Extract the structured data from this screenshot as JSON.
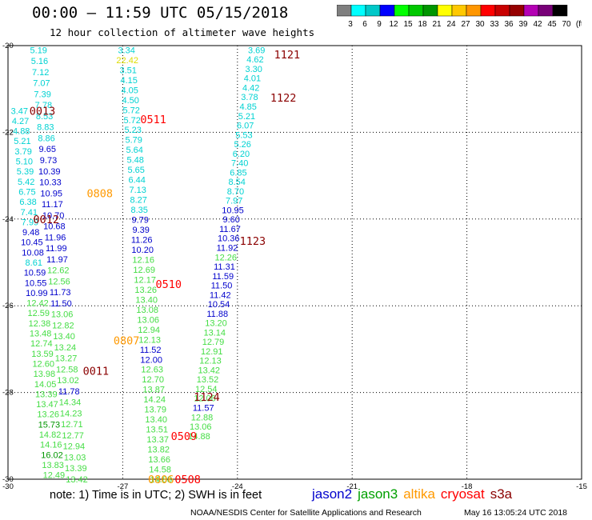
{
  "header": {
    "title": "00:00 – 11:59 UTC 05/15/2018",
    "subtitle": "12 hour collection of altimeter wave heights"
  },
  "colorbar": {
    "labels": [
      "3",
      "6",
      "9",
      "12",
      "15",
      "18",
      "21",
      "24",
      "27",
      "30",
      "33",
      "36",
      "39",
      "42",
      "45",
      "70",
      "(ft)"
    ],
    "colors": [
      "#7f7f7f",
      "#00ffff",
      "#00c8c8",
      "#0000ff",
      "#00ff00",
      "#00c800",
      "#009600",
      "#ffff00",
      "#ffc800",
      "#ff9600",
      "#ff0000",
      "#c80000",
      "#960000",
      "#b400b4",
      "#780078",
      "#000000"
    ]
  },
  "note": "note: 1) Time is in UTC; 2) SWH is in feet",
  "legend": [
    {
      "name": "jason2",
      "color": "#0000cc"
    },
    {
      "name": "jason3",
      "color": "#00a000"
    },
    {
      "name": "altika",
      "color": "#ff9900"
    },
    {
      "name": "cryosat",
      "color": "#ff0000"
    },
    {
      "name": "s3a",
      "color": "#8b0000"
    }
  ],
  "footer": {
    "credit": "NOAA/NESDIS Center for Satellite Applications and Research",
    "timestamp": "May 16 13:05:24 UTC 2018"
  },
  "chart_data": {
    "type": "scatter",
    "title": "00:00 – 11:59 UTC 05/15/2018",
    "xlim": [
      -30,
      -15
    ],
    "ylim": [
      -30,
      -20
    ],
    "x_ticks": [
      "-30",
      "-27",
      "-24",
      "-21",
      "-18",
      "-15"
    ],
    "y_ticks": [
      "-20",
      "-22",
      "-24",
      "-26",
      "-28",
      "-30"
    ],
    "grid": true,
    "units": "ft",
    "tracks": [
      {
        "id": "t1",
        "x0": -29.2,
        "y0": -20.1,
        "x1": -28.2,
        "y1": -30.0,
        "values": [
          "5.19",
          "5.16",
          "7.12",
          "7.07",
          "7.39",
          "7.78",
          "8.53",
          "8.83",
          "8.86",
          "9.65",
          "9.73",
          "10.39",
          "10.33",
          "10.95",
          "11.17",
          "10.70",
          "10.68",
          "11.96",
          "11.99",
          "11.97",
          "12.62",
          "12.56",
          "11.73",
          "11.50",
          "13.06",
          "12.82",
          "13.40",
          "13.24",
          "13.27",
          "12.58",
          "13.02",
          "11.78",
          "14.34",
          "14.23",
          "12.71",
          "12.77",
          "12.94",
          "13.03",
          "13.39",
          "13.42"
        ],
        "colors": [
          "#00d2d2",
          "#00d2d2",
          "#00d2d2",
          "#00d2d2",
          "#00d2d2",
          "#00d2d2",
          "#00d2d2",
          "#00d2d2",
          "#00d2d2",
          "#0000cc",
          "#0000cc",
          "#0000cc",
          "#0000cc",
          "#0000cc",
          "#0000cc",
          "#0000cc",
          "#0000cc",
          "#0000cc",
          "#0000cc",
          "#0000cc",
          "#44dd44",
          "#44dd44",
          "#0000cc",
          "#0000cc",
          "#44dd44",
          "#44dd44",
          "#44dd44",
          "#44dd44",
          "#44dd44",
          "#44dd44",
          "#44dd44",
          "#0000cc",
          "#44dd44",
          "#44dd44",
          "#44dd44",
          "#44dd44",
          "#44dd44",
          "#44dd44",
          "#44dd44",
          "#44dd44"
        ]
      },
      {
        "id": "t2",
        "x0": -29.7,
        "y0": -21.5,
        "x1": -28.8,
        "y1": -29.9,
        "values": [
          "3.47",
          "4.27",
          "4.88",
          "5.21",
          "3.79",
          "5.10",
          "5.39",
          "5.42",
          "6.75",
          "6.38",
          "7.41",
          "7.99",
          "9.48",
          "10.45",
          "10.08",
          "8.61",
          "10.59",
          "10.55",
          "10.99",
          "12.42",
          "12.59",
          "12.38",
          "13.48",
          "12.74",
          "13.59",
          "12.60",
          "13.98",
          "14.05",
          "13.39",
          "13.47",
          "13.26",
          "15.73",
          "14.82",
          "14.16",
          "16.02",
          "13.83",
          "12.49"
        ],
        "colors": [
          "#00d2d2",
          "#00d2d2",
          "#00d2d2",
          "#00d2d2",
          "#00d2d2",
          "#00d2d2",
          "#00d2d2",
          "#00d2d2",
          "#00d2d2",
          "#00d2d2",
          "#00d2d2",
          "#00d2d2",
          "#0000cc",
          "#0000cc",
          "#0000cc",
          "#00d2d2",
          "#0000cc",
          "#0000cc",
          "#0000cc",
          "#44dd44",
          "#44dd44",
          "#44dd44",
          "#44dd44",
          "#44dd44",
          "#44dd44",
          "#44dd44",
          "#44dd44",
          "#44dd44",
          "#44dd44",
          "#44dd44",
          "#44dd44",
          "#009600",
          "#44dd44",
          "#44dd44",
          "#009600",
          "#44dd44",
          "#44dd44"
        ]
      },
      {
        "id": "t3",
        "x0": -26.9,
        "y0": -20.1,
        "x1": -26.0,
        "y1": -30.0,
        "values": [
          "3.34",
          "22.42",
          "3.51",
          "4.15",
          "4.05",
          "4.50",
          "5.72",
          "5.72",
          "5.23",
          "5.79",
          "5.64",
          "5.48",
          "5.65",
          "6.44",
          "7.13",
          "8.27",
          "8.35",
          "9.79",
          "9.39",
          "11.26",
          "10.20",
          "12.16",
          "12.69",
          "12.17",
          "13.26",
          "13.40",
          "13.08",
          "13.06",
          "12.94",
          "12.13",
          "11.52",
          "12.00",
          "12.63",
          "12.70",
          "13.87",
          "14.24",
          "13.79",
          "13.40",
          "13.51",
          "13.37",
          "13.82",
          "13.66",
          "14.58",
          "14.88"
        ],
        "colors": [
          "#00d2d2",
          "#dddd00",
          "#00d2d2",
          "#00d2d2",
          "#00d2d2",
          "#00d2d2",
          "#00d2d2",
          "#00d2d2",
          "#00d2d2",
          "#00d2d2",
          "#00d2d2",
          "#00d2d2",
          "#00d2d2",
          "#00d2d2",
          "#00d2d2",
          "#00d2d2",
          "#00d2d2",
          "#0000cc",
          "#0000cc",
          "#0000cc",
          "#0000cc",
          "#44dd44",
          "#44dd44",
          "#44dd44",
          "#44dd44",
          "#44dd44",
          "#44dd44",
          "#44dd44",
          "#44dd44",
          "#44dd44",
          "#0000cc",
          "#0000cc",
          "#44dd44",
          "#44dd44",
          "#44dd44",
          "#44dd44",
          "#44dd44",
          "#44dd44",
          "#44dd44",
          "#44dd44",
          "#44dd44",
          "#44dd44",
          "#44dd44",
          "#44dd44"
        ]
      },
      {
        "id": "t4",
        "x0": -23.5,
        "y0": -20.1,
        "x1": -25.0,
        "y1": -29.0,
        "values": [
          "3.69",
          "4.62",
          "3.30",
          "4.01",
          "4.42",
          "3.78",
          "4.85",
          "5.21",
          "6.07",
          "5.53",
          "5.26",
          "6.20",
          "7.40",
          "6.85",
          "8.54",
          "8.70",
          "7.97",
          "10.95",
          "9.60",
          "11.67",
          "10.36",
          "11.92",
          "12.26",
          "11.31",
          "11.59",
          "11.50",
          "11.42",
          "10.54",
          "11.88",
          "13.20",
          "13.14",
          "12.79",
          "12.91",
          "12.13",
          "13.42",
          "13.52",
          "12.54",
          "12.06",
          "11.57",
          "12.88",
          "13.06",
          "14.88"
        ],
        "colors": [
          "#00d2d2",
          "#00d2d2",
          "#00d2d2",
          "#00d2d2",
          "#00d2d2",
          "#00d2d2",
          "#00d2d2",
          "#00d2d2",
          "#00d2d2",
          "#00d2d2",
          "#00d2d2",
          "#00d2d2",
          "#00d2d2",
          "#00d2d2",
          "#00d2d2",
          "#00d2d2",
          "#00d2d2",
          "#0000cc",
          "#0000cc",
          "#0000cc",
          "#0000cc",
          "#0000cc",
          "#44dd44",
          "#0000cc",
          "#0000cc",
          "#0000cc",
          "#0000cc",
          "#0000cc",
          "#0000cc",
          "#44dd44",
          "#44dd44",
          "#44dd44",
          "#44dd44",
          "#44dd44",
          "#44dd44",
          "#44dd44",
          "#44dd44",
          "#44dd44",
          "#0000cc",
          "#44dd44",
          "#44dd44",
          "#44dd44"
        ]
      }
    ],
    "annotations": [
      {
        "text": "1121",
        "x": -22.7,
        "y": -20.2,
        "color": "#8b0000"
      },
      {
        "text": "1122",
        "x": -22.8,
        "y": -21.2,
        "color": "#8b0000"
      },
      {
        "text": "0013",
        "x": -29.1,
        "y": -21.5,
        "color": "#8b0000"
      },
      {
        "text": "0511",
        "x": -26.2,
        "y": -21.7,
        "color": "#ff0000"
      },
      {
        "text": "0808",
        "x": -27.6,
        "y": -23.4,
        "color": "#ff9900"
      },
      {
        "text": "0012",
        "x": -29.0,
        "y": -24.0,
        "color": "#8b0000"
      },
      {
        "text": "1123",
        "x": -23.6,
        "y": -24.5,
        "color": "#8b0000"
      },
      {
        "text": "0510",
        "x": -25.8,
        "y": -25.5,
        "color": "#ff0000"
      },
      {
        "text": "0807",
        "x": -26.9,
        "y": -26.8,
        "color": "#ff9900"
      },
      {
        "text": "0011",
        "x": -27.7,
        "y": -27.5,
        "color": "#8b0000"
      },
      {
        "text": "1124",
        "x": -24.8,
        "y": -28.1,
        "color": "#8b0000"
      },
      {
        "text": "0509",
        "x": -25.4,
        "y": -29.0,
        "color": "#ff0000"
      },
      {
        "text": "0806",
        "x": -26.0,
        "y": -30.0,
        "color": "#ff9900"
      },
      {
        "text": "0508",
        "x": -25.3,
        "y": -30.0,
        "color": "#ff0000"
      }
    ]
  }
}
